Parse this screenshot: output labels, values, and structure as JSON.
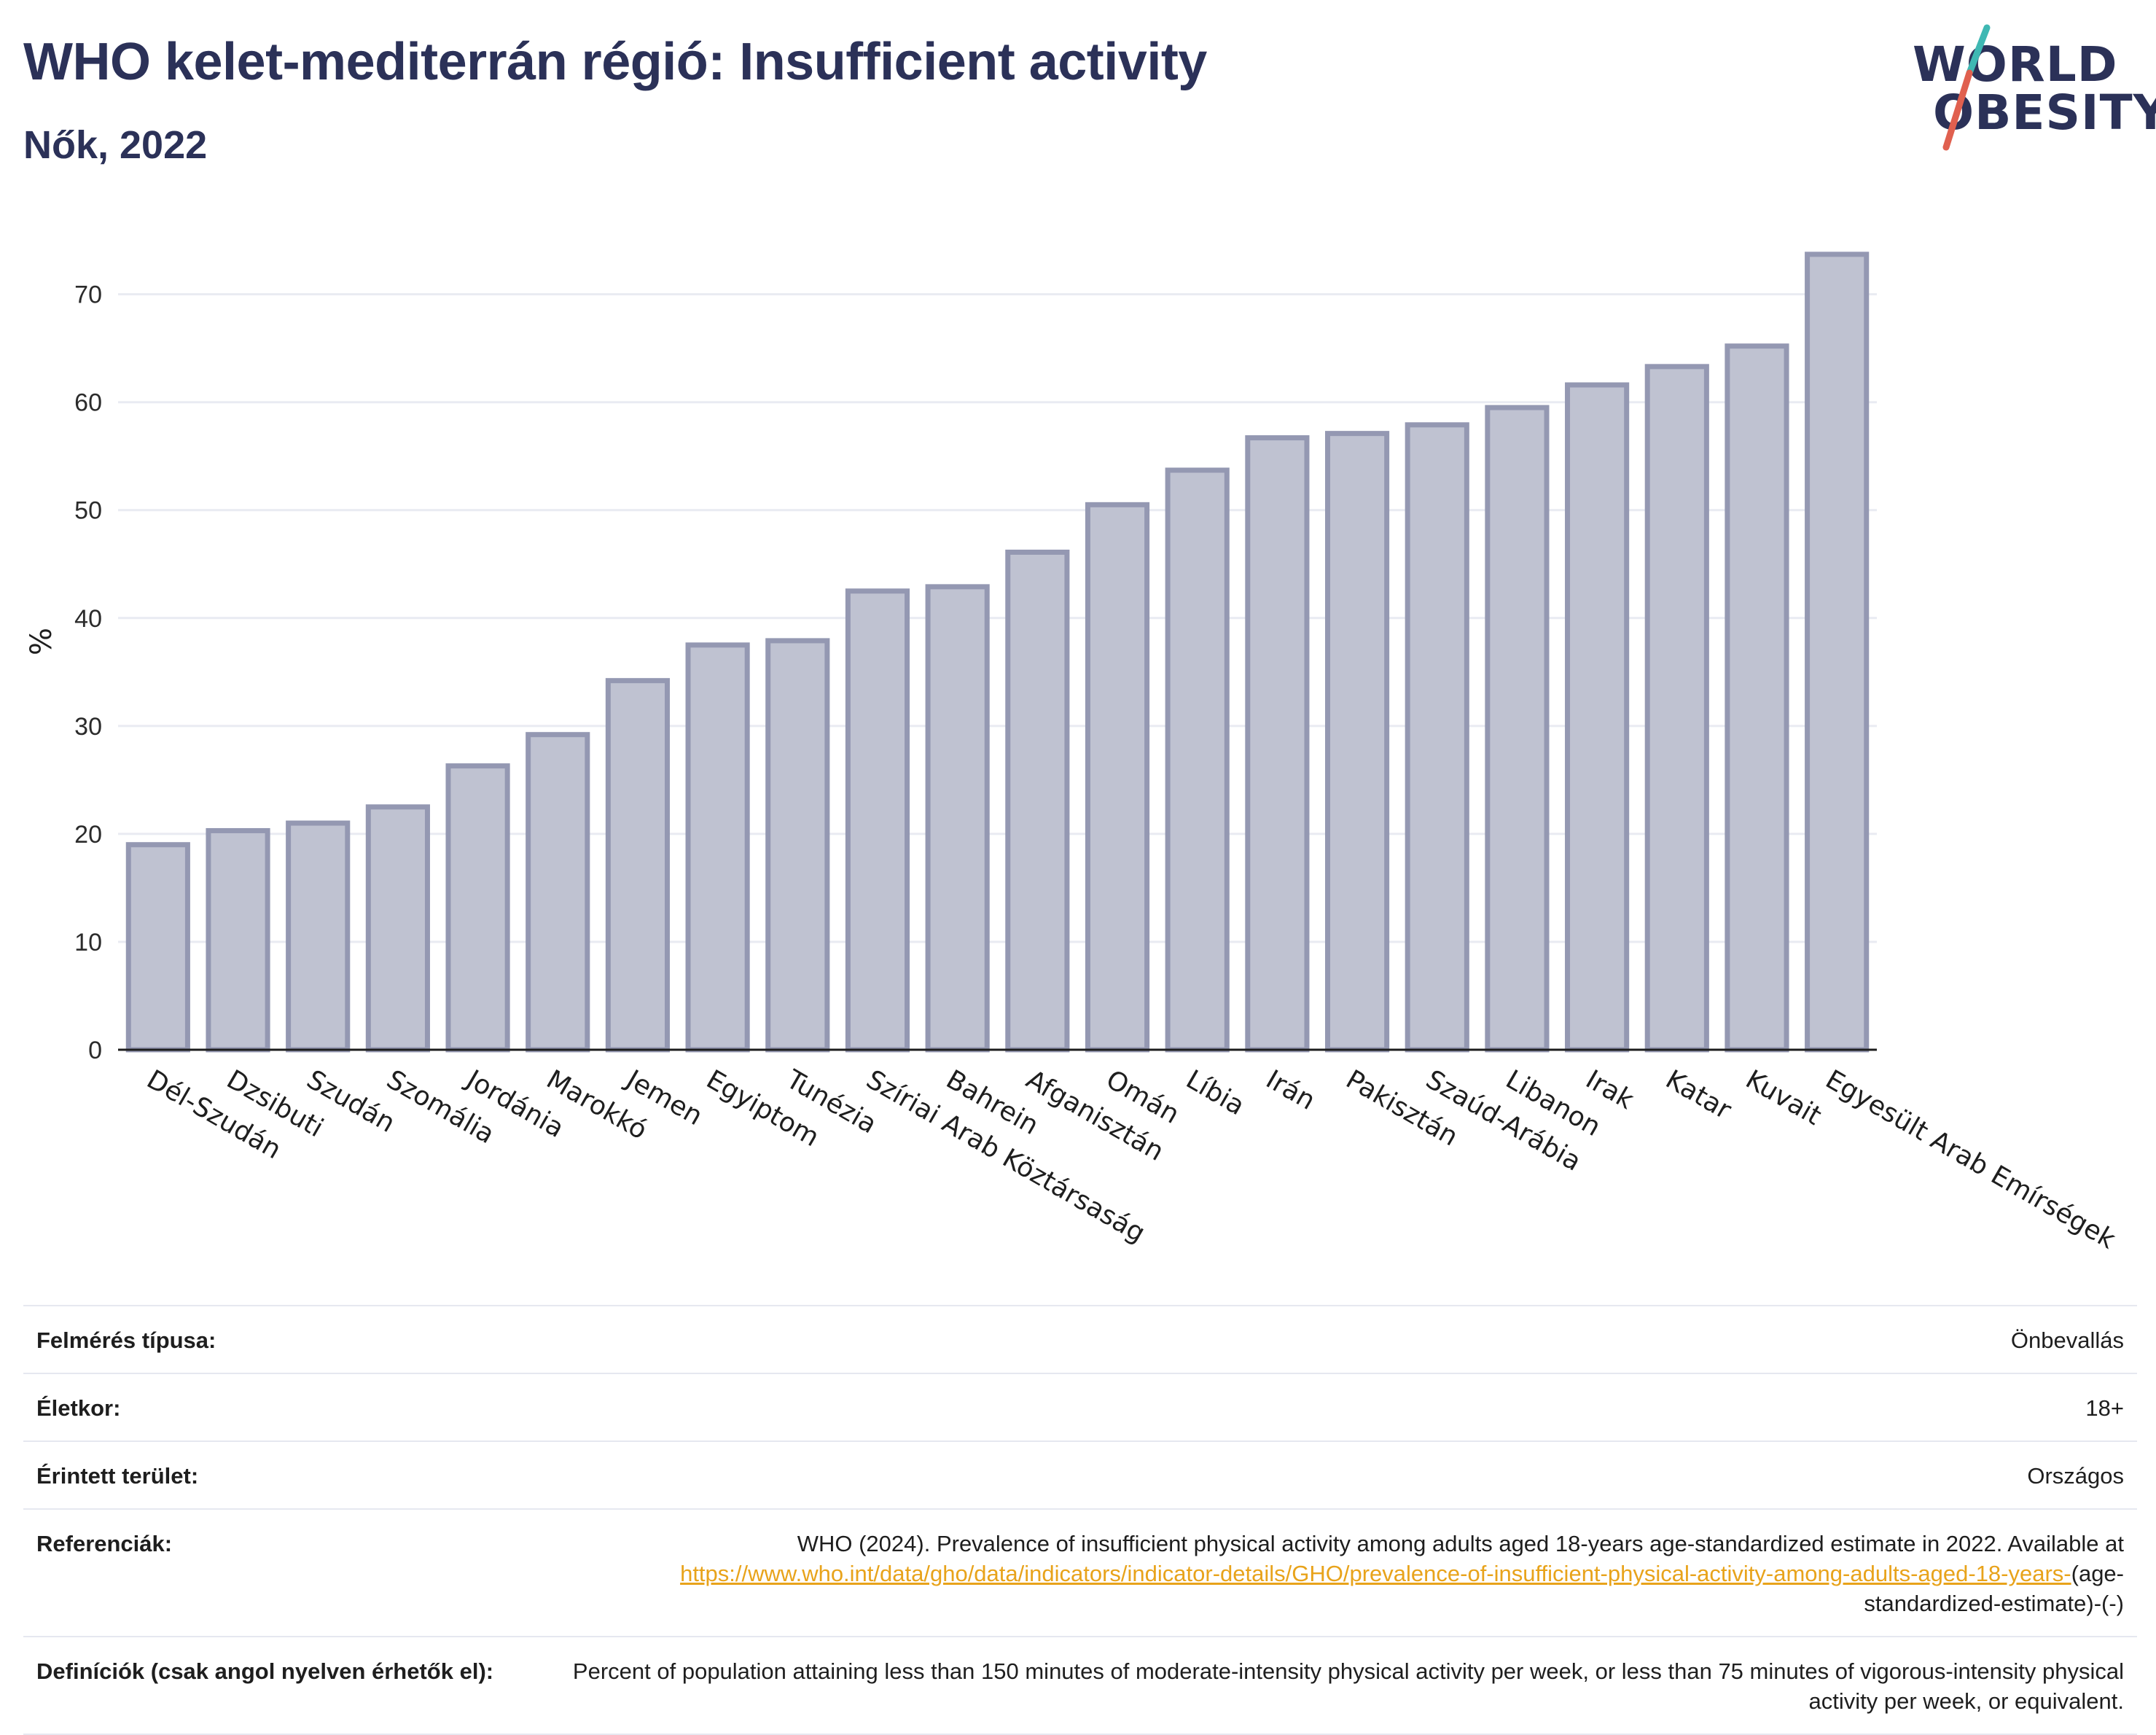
{
  "header": {
    "title": "WHO kelet-mediterrán régió: Insufficient activity",
    "subtitle": "Nők, 2022"
  },
  "logo": {
    "line1": "WORLD",
    "line2": "OBESITY",
    "colors": {
      "text": "#2b3158",
      "slash_teal": "#3fb8b3",
      "slash_red": "#e0604f"
    }
  },
  "chart_data": {
    "type": "bar",
    "categories": [
      "Dél-Szudán",
      "Dzsibuti",
      "Szudán",
      "Szomália",
      "Jordánia",
      "Marokkó",
      "Jemen",
      "Egyiptom",
      "Tunézia",
      "Szíriai Arab Köztársaság",
      "Bahrein",
      "Afganisztán",
      "Omán",
      "Líbia",
      "Irán",
      "Pakisztán",
      "Szaúd-Arábia",
      "Libanon",
      "Irak",
      "Katar",
      "Kuvait",
      "Egyesült Arab Emírségek"
    ],
    "values": [
      19.0,
      20.3,
      21.0,
      22.5,
      26.3,
      29.2,
      34.2,
      37.5,
      37.9,
      42.5,
      42.9,
      46.1,
      50.5,
      53.7,
      56.7,
      57.1,
      57.9,
      59.5,
      61.6,
      63.3,
      65.2,
      73.7
    ],
    "title": "",
    "xlabel": "",
    "ylabel": "%",
    "ylim": [
      0,
      77
    ],
    "yticks": [
      0,
      10,
      20,
      30,
      40,
      50,
      60,
      70
    ],
    "grid": true,
    "legend": "none",
    "colors": {
      "bar_fill": "#bfc2d1",
      "bar_stroke": "#9498b2",
      "grid": "#e9ebf2"
    }
  },
  "meta": {
    "rows": [
      {
        "label": "Felmérés típusa:",
        "value": "Önbevallás"
      },
      {
        "label": "Életkor:",
        "value": "18+"
      },
      {
        "label": "Érintett terület:",
        "value": "Országos"
      },
      {
        "label": "Referenciák:",
        "value_pre": "WHO (2024). Prevalence of insufficient physical activity among adults aged 18-years age-standardized estimate in 2022. Available at ",
        "link": "https://www.who.int/data/gho/data/indicators/indicator-details/GHO/prevalence-of-insufficient-physical-activity-among-adults-aged-18-years-",
        "value_post": "(age-standardized-estimate)-(-)"
      },
      {
        "label": "Definíciók (csak angol nyelven érhetők el):",
        "value": "Percent of population attaining less than 150 minutes of moderate-intensity physical activity per week, or less than 75 minutes of vigorous-intensity physical activity per week, or equivalent."
      }
    ]
  }
}
